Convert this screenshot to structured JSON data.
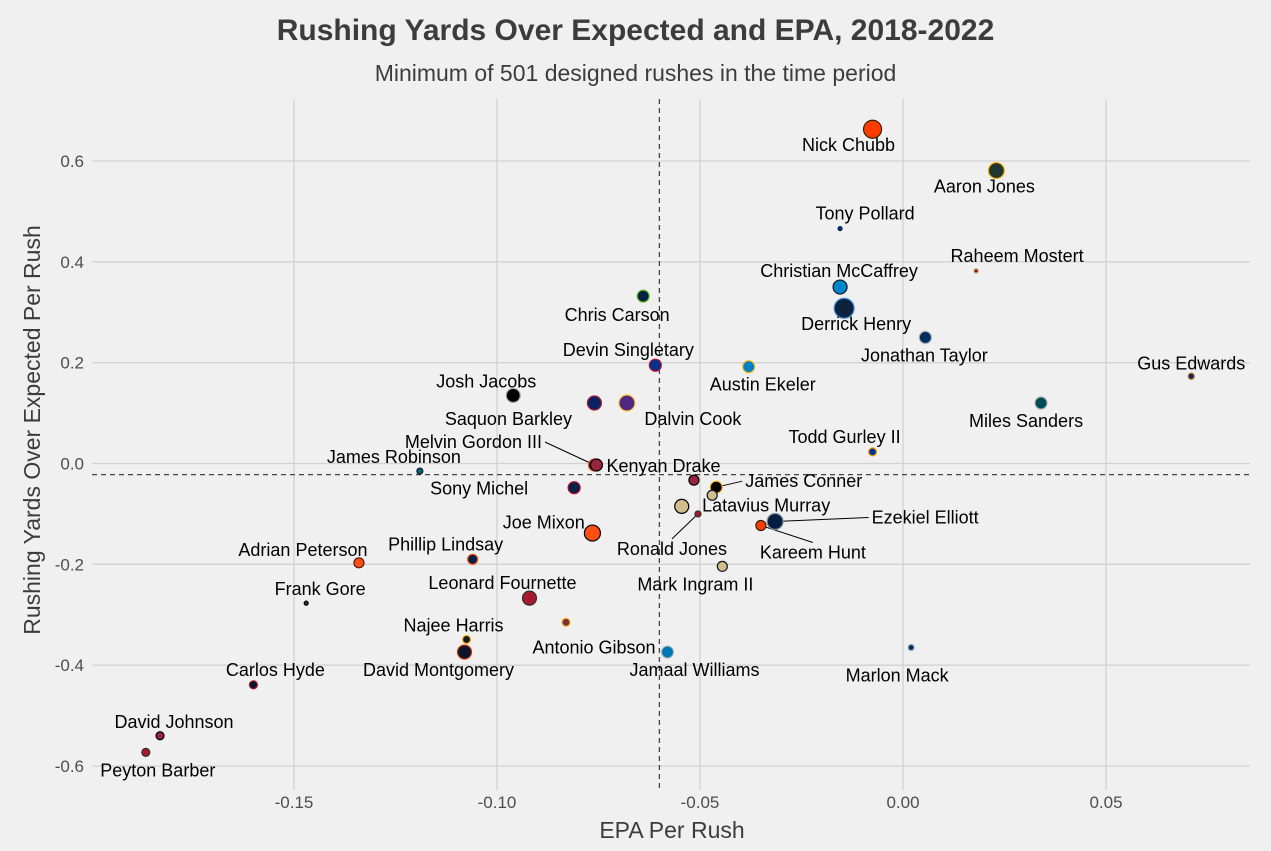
{
  "chart_data": {
    "type": "scatter",
    "title": "Rushing Yards Over Expected and EPA, 2018-2022",
    "subtitle": "Minimum of 501 designed rushes in the time period",
    "xlabel": "EPA Per Rush",
    "ylabel": "Rushing Yards Over Expected Per Rush",
    "xlim": [
      -0.198,
      0.085
    ],
    "ylim": [
      -0.635,
      0.73
    ],
    "xticks": [
      -0.15,
      -0.1,
      -0.05,
      0.0,
      0.05
    ],
    "xtick_labels": [
      "-0.15",
      "-0.10",
      "-0.05",
      "0.00",
      "0.05"
    ],
    "yticks": [
      -0.6,
      -0.4,
      -0.2,
      0.0,
      0.2,
      0.4,
      0.6
    ],
    "ytick_labels": [
      "-0.6",
      "-0.4",
      "-0.2",
      "0.0",
      "0.2",
      "0.4",
      "0.6"
    ],
    "grid": true,
    "reference_lines": {
      "x": -0.06,
      "y": -0.022
    },
    "points": [
      {
        "label": "Nick Chubb",
        "x": -0.0075,
        "y": 0.663,
        "size": 9,
        "fill": "#ff3c00",
        "stroke": "#311d00",
        "label_dx": -24,
        "label_dy": 22
      },
      {
        "label": "Aaron Jones",
        "x": 0.023,
        "y": 0.581,
        "size": 8,
        "fill": "#203731",
        "stroke": "#ffb612",
        "label_dx": -12,
        "label_dy": 22
      },
      {
        "label": "Tony Pollard",
        "x": -0.0155,
        "y": 0.466,
        "size": 2,
        "fill": "#003594",
        "stroke": "#041e42",
        "label_dx": 25,
        "label_dy": -9
      },
      {
        "label": "Raheem Mostert",
        "x": 0.018,
        "y": 0.382,
        "size": 2,
        "fill": "#aa0000",
        "stroke": "#b3995d",
        "label_dx": 41,
        "label_dy": -9
      },
      {
        "label": "Christian McCaffrey",
        "x": -0.0155,
        "y": 0.35,
        "size": 7,
        "fill": "#0085ca",
        "stroke": "#101820",
        "label_dx": -1,
        "label_dy": -10
      },
      {
        "label": "Derrick Henry",
        "x": -0.0145,
        "y": 0.308,
        "size": 10,
        "fill": "#0c2340",
        "stroke": "#4b92db",
        "label_dx": 12,
        "label_dy": 22
      },
      {
        "label": "Jonathan Taylor",
        "x": 0.0055,
        "y": 0.25,
        "size": 6,
        "fill": "#002c5f",
        "stroke": "#a2aaad",
        "label_dx": -1,
        "label_dy": 24
      },
      {
        "label": "Chris Carson",
        "x": -0.064,
        "y": 0.332,
        "size": 6,
        "fill": "#002244",
        "stroke": "#69be28",
        "label_dx": -26,
        "label_dy": 25
      },
      {
        "label": "Devin Singletary",
        "x": -0.061,
        "y": 0.195,
        "size": 6,
        "fill": "#00338d",
        "stroke": "#c60c30",
        "label_dx": -27,
        "label_dy": -9
      },
      {
        "label": "Austin Ekeler",
        "x": -0.038,
        "y": 0.192,
        "size": 6,
        "fill": "#0080c6",
        "stroke": "#ffc20e",
        "label_dx": 14,
        "label_dy": 24
      },
      {
        "label": "Gus Edwards",
        "x": 0.071,
        "y": 0.173,
        "size": 3,
        "fill": "#241773",
        "stroke": "#9e7c0c",
        "label_dx": 0,
        "label_dy": -7
      },
      {
        "label": "Miles Sanders",
        "x": 0.034,
        "y": 0.12,
        "size": 6,
        "fill": "#004c54",
        "stroke": "#a5acaf",
        "label_dx": -15,
        "label_dy": 24
      },
      {
        "label": "Josh Jacobs",
        "x": -0.096,
        "y": 0.135,
        "size": 7,
        "fill": "#000000",
        "stroke": "#a5acaf",
        "label_dx": -27,
        "label_dy": -8
      },
      {
        "label": "Saquon Barkley",
        "x": -0.076,
        "y": 0.12,
        "size": 7,
        "fill": "#0b2265",
        "stroke": "#a71930",
        "label_dx": -86,
        "label_dy": 22
      },
      {
        "label": "Dalvin Cook",
        "x": -0.068,
        "y": 0.12,
        "size": 8,
        "fill": "#4f2683",
        "stroke": "#ffc62f",
        "label_dx": 66,
        "label_dy": 22
      },
      {
        "label": "Todd Gurley II",
        "x": -0.0075,
        "y": 0.023,
        "size": 4,
        "fill": "#003594",
        "stroke": "#ffa300",
        "label_dx": -28,
        "label_dy": -9
      },
      {
        "label": "James Robinson",
        "x": -0.119,
        "y": -0.015,
        "size": 3,
        "fill": "#006778",
        "stroke": "#101820",
        "label_dx": -26,
        "label_dy": -8
      },
      {
        "label": "Melvin Gordon III",
        "x": -0.076,
        "y": -0.003,
        "size": 6,
        "fill": "#002244",
        "stroke": "#fb4f14",
        "label_dx": -121,
        "label_dy": -17,
        "leader": true
      },
      {
        "label": "Kenyan Drake",
        "x": -0.0755,
        "y": -0.003,
        "size": 6,
        "fill": "#97233f",
        "stroke": "#000000",
        "label_dx": 10,
        "label_dy": 7,
        "anchor": "start"
      },
      {
        "label": "James Conner",
        "x": -0.046,
        "y": -0.047,
        "size": 6,
        "fill": "#000000",
        "stroke": "#ffb612",
        "label_dx": 29,
        "label_dy": 0,
        "anchor": "start",
        "leader": true
      },
      {
        "label": "Sony Michel",
        "x": -0.081,
        "y": -0.048,
        "size": 6,
        "fill": "#002244",
        "stroke": "#c60c30",
        "label_dx": -95,
        "label_dy": 7
      },
      {
        "label": "Latavius Murray",
        "x": -0.047,
        "y": -0.063,
        "size": 5,
        "fill": "#d3bc8d",
        "stroke": "#101820",
        "label_dx": 54,
        "label_dy": 16
      },
      {
        "label": "James Conner (2)",
        "x": -0.0515,
        "y": -0.033,
        "size": 5,
        "fill": "#97233f",
        "stroke": "#000000",
        "hide_label": true
      },
      {
        "label": "Joe Mixon",
        "x": -0.0545,
        "y": -0.085,
        "size": 7,
        "fill": "#d3bc8d",
        "stroke": "#000000",
        "label_dx": -138,
        "label_dy": 22
      },
      {
        "label": "Ronald Jones",
        "x": -0.0505,
        "y": -0.1,
        "size": 3,
        "fill": "#a71930",
        "stroke": "#322f2b",
        "label_dx": -26,
        "label_dy": 41,
        "leader": true
      },
      {
        "label": "Ezekiel Elliott",
        "x": -0.0315,
        "y": -0.115,
        "size": 8,
        "fill": "#041e42",
        "stroke": "#869397",
        "label_dx": 150,
        "label_dy": 2,
        "leader": true
      },
      {
        "label": "Kareem Hunt",
        "x": -0.035,
        "y": -0.123,
        "size": 5,
        "fill": "#ff3c00",
        "stroke": "#311d00",
        "label_dx": 52,
        "label_dy": 33,
        "leader": true
      },
      {
        "label": "Ronald Jones (Joe)",
        "x": -0.0765,
        "y": -0.138,
        "size": 8,
        "fill": "#fb4f14",
        "stroke": "#000000",
        "hide_label": true
      },
      {
        "label": "Adrian Peterson",
        "x": -0.134,
        "y": -0.197,
        "size": 5,
        "fill": "#fb4f14",
        "stroke": "#5a1414",
        "label_dx": -56,
        "label_dy": -7
      },
      {
        "label": "Phillip Lindsay",
        "x": -0.106,
        "y": -0.19,
        "size": 5,
        "fill": "#002244",
        "stroke": "#fb4f14",
        "label_dx": -27,
        "label_dy": -9
      },
      {
        "label": "Mark Ingram II",
        "x": -0.0445,
        "y": -0.204,
        "size": 5,
        "fill": "#d3bc8d",
        "stroke": "#101820",
        "label_dx": -27,
        "label_dy": 24
      },
      {
        "label": "Frank Gore",
        "x": -0.147,
        "y": -0.277,
        "size": 2,
        "fill": "#203731",
        "stroke": "#000000",
        "label_dx": 14,
        "label_dy": -8
      },
      {
        "label": "Leonard Fournette",
        "x": -0.092,
        "y": -0.267,
        "size": 7,
        "fill": "#a71930",
        "stroke": "#322f2b",
        "label_dx": -27,
        "label_dy": -9
      },
      {
        "label": "Antonio Gibson",
        "x": -0.083,
        "y": -0.315,
        "size": 4,
        "fill": "#773141",
        "stroke": "#ffb612",
        "label_dx": 28,
        "label_dy": 31
      },
      {
        "label": "Najee Harris",
        "x": -0.1075,
        "y": -0.349,
        "size": 4,
        "fill": "#101820",
        "stroke": "#ffb612",
        "label_dx": -13,
        "label_dy": -8
      },
      {
        "label": "Jamaal Williams",
        "x": -0.058,
        "y": -0.374,
        "size": 6,
        "fill": "#0076b6",
        "stroke": "#b0b7bc",
        "label_dx": 27,
        "label_dy": 24
      },
      {
        "label": "David Montgomery",
        "x": -0.108,
        "y": -0.374,
        "size": 7,
        "fill": "#0b162a",
        "stroke": "#c83803",
        "label_dx": -26,
        "label_dy": 24
      },
      {
        "label": "Marlon Mack",
        "x": 0.002,
        "y": -0.365,
        "size": 3,
        "fill": "#002c5f",
        "stroke": "#a2aaad",
        "label_dx": -14,
        "label_dy": 34
      },
      {
        "label": "Carlos Hyde",
        "x": -0.16,
        "y": -0.439,
        "size": 4,
        "fill": "#0b162a",
        "stroke": "#a71930",
        "label_dx": 22,
        "label_dy": -9
      },
      {
        "label": "David Johnson",
        "x": -0.183,
        "y": -0.54,
        "size": 4,
        "fill": "#97233f",
        "stroke": "#000000",
        "label_dx": 14,
        "label_dy": -8
      },
      {
        "label": "Peyton Barber",
        "x": -0.1865,
        "y": -0.573,
        "size": 4,
        "fill": "#a71930",
        "stroke": "#322f2b",
        "label_dx": 12,
        "label_dy": 24
      }
    ]
  }
}
